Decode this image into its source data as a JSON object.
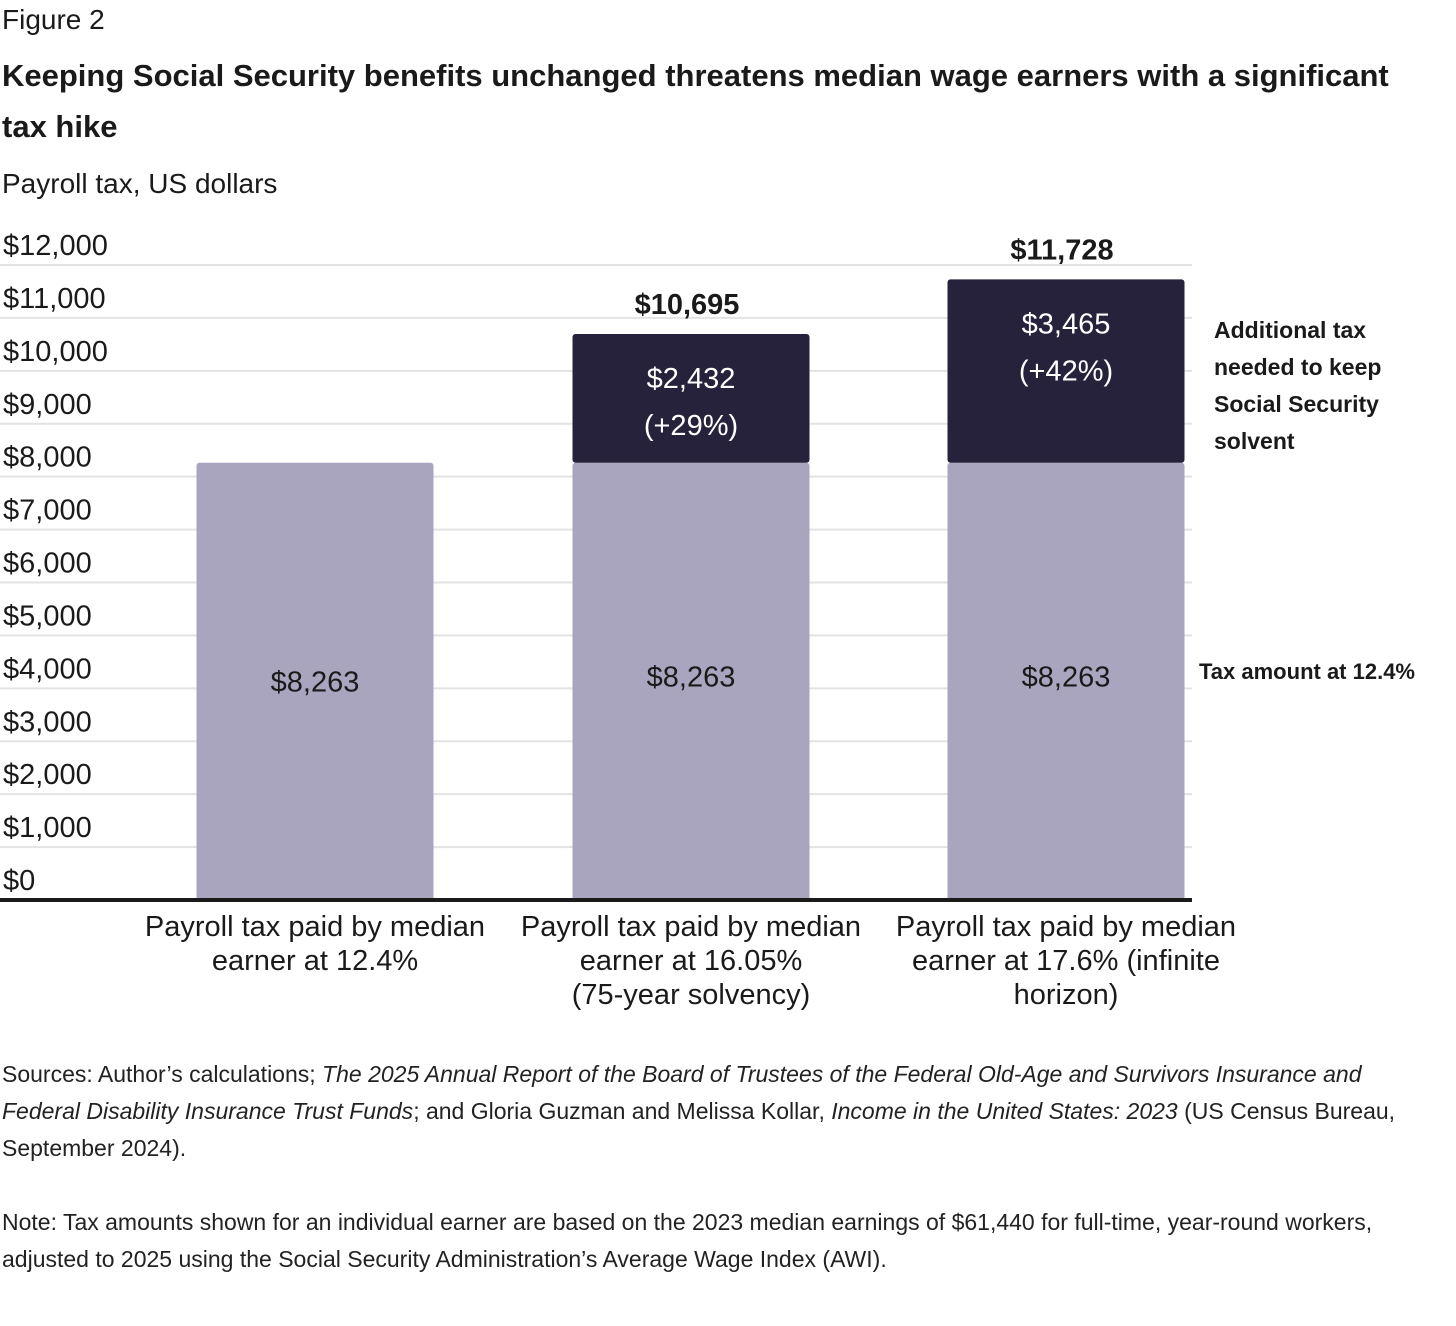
{
  "figure_label": "Figure 2",
  "title": "Keeping Social Security benefits unchanged threatens median wage earners with a significant tax hike",
  "subtitle": "Payroll tax, US dollars",
  "colors": {
    "base": "#a9a5bf",
    "additional": "#27223c",
    "grid": "#e3e3e3",
    "axis": "#1a1a1a"
  },
  "chart_data": {
    "type": "bar",
    "stacked": true,
    "ylim": [
      0,
      12000
    ],
    "yticks": [
      "$0",
      "$1,000",
      "$2,000",
      "$3,000",
      "$4,000",
      "$5,000",
      "$6,000",
      "$7,000",
      "$8,000",
      "$9,000",
      "$10,000",
      "$11,000",
      "$12,000"
    ],
    "ytick_values": [
      0,
      1000,
      2000,
      3000,
      4000,
      5000,
      6000,
      7000,
      8000,
      9000,
      10000,
      11000,
      12000
    ],
    "categories": [
      [
        "Payroll tax paid by median",
        "earner at 12.4%"
      ],
      [
        "Payroll tax paid by median",
        "earner at 16.05%",
        "(75-year solvency)"
      ],
      [
        "Payroll tax paid by median",
        "earner at 17.6% (infinite",
        "horizon)"
      ]
    ],
    "series": [
      {
        "name": "Tax amount at 12.4%",
        "values": [
          8263,
          8263,
          8263
        ],
        "labels": [
          "$8,263",
          "$8,263",
          "$8,263"
        ]
      },
      {
        "name": "Additional tax needed to keep Social Security solvent",
        "values": [
          0,
          2432,
          3465
        ],
        "labels": [
          "",
          "$2,432",
          "$3,465"
        ],
        "pct_labels": [
          "",
          "(+29%)",
          "(+42%)"
        ]
      }
    ],
    "totals": [
      null,
      10695,
      11728
    ],
    "total_labels": [
      "",
      "$10,695",
      "$11,728"
    ],
    "legend": {
      "additional": [
        "Additional tax",
        "needed to keep",
        "Social Security",
        "solvent"
      ],
      "base": "Tax amount at 12.4%"
    }
  },
  "sources": {
    "prefix": "Sources: Author’s calculations; ",
    "report": "The 2025 Annual Report of the Board of Trustees of the Federal Old-Age and Survivors Insurance and Federal Disability Insurance Trust Funds",
    "middle": "; and Gloria Guzman and Melissa Kollar, ",
    "census": "Income in the United States: 2023",
    "suffix": " (US Census Bureau, September 2024)."
  },
  "note": "Note: Tax amounts shown for an individual earner are based on the 2023 median earnings of $61,440 for full-time, year-round workers, adjusted to 2025 using the Social Security Administration’s Average Wage Index (AWI)."
}
